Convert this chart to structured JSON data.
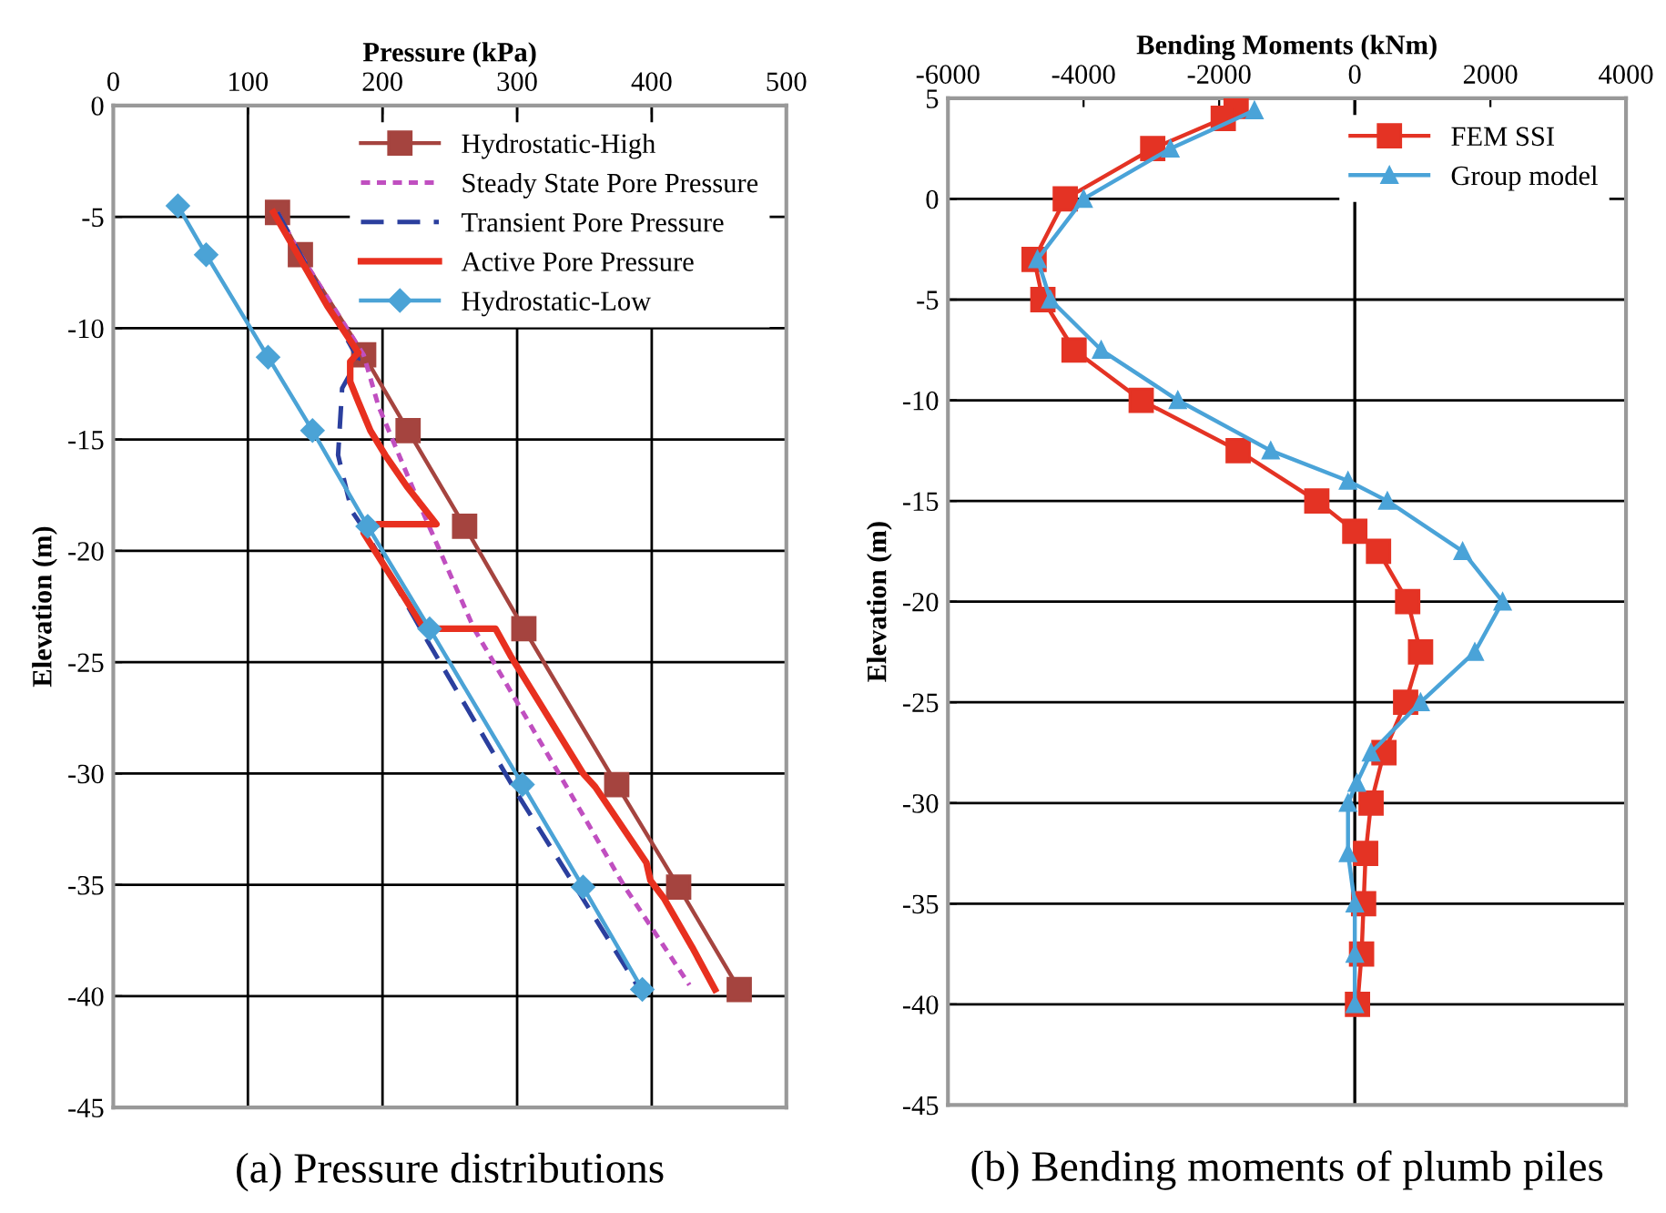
{
  "chart_data": [
    {
      "type": "line",
      "xlabel": "Pressure (kPa)",
      "ylabel": "Elevation (m)",
      "xlim": [
        0,
        500
      ],
      "xticks": [
        0,
        100,
        200,
        300,
        400,
        500
      ],
      "ylim": [
        -45,
        0
      ],
      "yticks": [
        0,
        -5,
        -10,
        -15,
        -20,
        -25,
        -30,
        -35,
        -40,
        -45
      ],
      "grid": true,
      "legend": "top right",
      "annotations": [
        "(a) Pressure distributions"
      ],
      "series": [
        {
          "name": "Hydrostatic-High",
          "color": "#a5443f",
          "marker": "square",
          "line_style": "solid",
          "x": [
            122,
            139,
            186,
            219,
            261,
            305,
            374,
            420,
            465
          ],
          "values": [
            -4.8,
            -6.7,
            -11.2,
            -14.6,
            -18.9,
            -23.5,
            -30.5,
            -35.1,
            -39.7
          ]
        },
        {
          "name": "Steady State Pore Pressure",
          "color": "#c04fc0",
          "marker": "none",
          "line_style": "dotted",
          "x": [
            122,
            139,
            186,
            197,
            231,
            268,
            331,
            380,
            428
          ],
          "values": [
            -4.8,
            -6.7,
            -11.2,
            -13.5,
            -18.4,
            -23.5,
            -30,
            -35.1,
            -39.5
          ]
        },
        {
          "name": "Transient Pore Pressure",
          "color": "#2b3f9e",
          "marker": "none",
          "line_style": "dashed",
          "x": [
            122,
            139,
            182,
            170,
            167,
            177,
            186,
            233,
            300,
            390
          ],
          "values": [
            -4.8,
            -6.7,
            -11.4,
            -12.7,
            -15.7,
            -18.2,
            -19,
            -24,
            -30.9,
            -39.6
          ]
        },
        {
          "name": "Active Pore Pressure",
          "color": "#e8301f",
          "marker": "none",
          "line_style": "solid",
          "x": [
            119,
            159,
            182,
            176,
            176,
            182,
            191,
            202,
            218,
            240,
            196,
            186,
            231,
            284,
            295,
            349,
            358,
            396,
            399,
            409,
            430,
            447
          ],
          "values": [
            -4.8,
            -9,
            -11.1,
            -11.5,
            -12.4,
            -13.3,
            -14.6,
            -15.7,
            -17.1,
            -18.8,
            -18.8,
            -19.2,
            -23.5,
            -23.5,
            -24.7,
            -30,
            -30.6,
            -34,
            -34.8,
            -35.6,
            -37.8,
            -39.7
          ]
        },
        {
          "name": "Hydrostatic-Low",
          "color": "#4ba3d6",
          "marker": "diamond",
          "line_style": "solid",
          "x": [
            48,
            69,
            115,
            148,
            189,
            235,
            304,
            349,
            393
          ],
          "values": [
            -4.5,
            -6.7,
            -11.3,
            -14.6,
            -18.9,
            -23.5,
            -30.5,
            -35.1,
            -39.7
          ]
        }
      ]
    },
    {
      "type": "line",
      "xlabel": "Bending Moments (kNm)",
      "ylabel": "Elevation (m)",
      "xlim": [
        -6000,
        4000
      ],
      "xticks": [
        -6000,
        -4000,
        -2000,
        0,
        2000,
        4000
      ],
      "ylim": [
        -45,
        5
      ],
      "yticks": [
        5,
        0,
        -5,
        -10,
        -15,
        -20,
        -25,
        -30,
        -35,
        -40,
        -45
      ],
      "grid": "y",
      "legend": "top right",
      "ref_lines": [
        {
          "axis": "x",
          "value": 0,
          "color": "#000000"
        }
      ],
      "annotations": [
        "(b) Bending moments of plumb piles"
      ],
      "series": [
        {
          "name": "FEM SSI",
          "color": "#e43324",
          "marker": "square",
          "line_style": "solid",
          "x": [
            -1750,
            -1940,
            -2980,
            -4270,
            -4730,
            -4600,
            -4140,
            -3150,
            -1720,
            -560,
            0,
            350,
            780,
            970,
            750,
            430,
            240,
            160,
            130,
            100,
            40
          ],
          "values": [
            4.6,
            4,
            2.5,
            0,
            -3,
            -5,
            -7.5,
            -10,
            -12.5,
            -15,
            -16.5,
            -17.5,
            -20,
            -22.5,
            -25,
            -27.5,
            -30,
            -32.5,
            -35,
            -37.5,
            -40
          ]
        },
        {
          "name": "Group model",
          "color": "#4aa3d8",
          "marker": "triangle",
          "line_style": "solid",
          "x": [
            -1480,
            -2720,
            -4000,
            -4680,
            -4490,
            -3740,
            -2610,
            -1240,
            -100,
            480,
            1590,
            2180,
            1770,
            970,
            240,
            30,
            -100,
            -100,
            0,
            0,
            0
          ],
          "values": [
            4.4,
            2.5,
            0,
            -3,
            -5,
            -7.5,
            -10,
            -12.5,
            -14,
            -15,
            -17.5,
            -20,
            -22.5,
            -25,
            -27.5,
            -29,
            -30,
            -32.5,
            -35,
            -37.5,
            -40
          ]
        }
      ]
    }
  ]
}
